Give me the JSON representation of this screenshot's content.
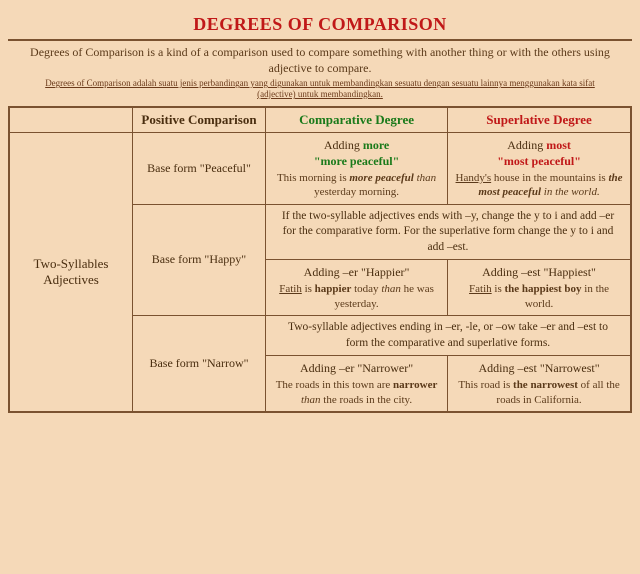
{
  "title": "DEGREES OF COMPARISON",
  "intro": "Degrees of Comparison is a kind of a comparison used to compare something with another thing or with the others using adjective to compare.",
  "subintro": "Degrees of Comparison adalah suatu jenis perbandingan yang digunakan untuk membandingkan sesuatu dengan sesuatu lainnya menggunakan kata sifat (adjective) untuk membandingkan.",
  "headers": {
    "positive": "Positive Comparison",
    "comparative": "Comparative Degree",
    "superlative": "Superlative Degree"
  },
  "rowlabel": "Two-Syllables Adjectives",
  "row1": {
    "base": "Base form \"Peaceful\"",
    "comp_title_a": "Adding ",
    "comp_title_b": "more",
    "comp_title_c": "\"more peaceful\"",
    "comp_ex_a": "This morning is ",
    "comp_ex_b": "more peaceful",
    "comp_ex_c": " than",
    "comp_ex_d": " yesterday morning.",
    "sup_title_a": "Adding ",
    "sup_title_b": "most",
    "sup_title_c": "\"most peaceful\"",
    "sup_ex_a": "Handy's",
    "sup_ex_b": " house in the mountains is ",
    "sup_ex_c": "the most peaceful",
    "sup_ex_d": " in the world."
  },
  "rule2": "If the two-syllable adjectives ends with –y, change the y to i and add –er for the comparative form. For the superlative form change the y to i and add –est.",
  "row2": {
    "base": "Base form \"Happy\"",
    "comp_title": "Adding –er \"Happier\"",
    "comp_ex_a": "Fatih",
    "comp_ex_b": " is ",
    "comp_ex_c": "happier",
    "comp_ex_d": " today ",
    "comp_ex_e": "than",
    "comp_ex_f": " he was yesterday.",
    "sup_title": "Adding –est \"Happiest\"",
    "sup_ex_a": "Fatih",
    "sup_ex_b": " is ",
    "sup_ex_c": "the happiest boy",
    "sup_ex_d": " in the world."
  },
  "rule3": "Two-syllable adjectives ending in –er, -le, or –ow take –er and –est to form the comparative and superlative forms.",
  "row3": {
    "base": "Base form \"Narrow\"",
    "comp_title": "Adding –er \"Narrower\"",
    "comp_ex_a": "The roads in this town are ",
    "comp_ex_b": "narrower",
    "comp_ex_c": " than",
    "comp_ex_d": " the roads in the city.",
    "sup_title": "Adding –est \"Narrowest\"",
    "sup_ex_a": "This road is ",
    "sup_ex_b": "the narrowest",
    "sup_ex_c": " of all the roads in California."
  },
  "colors": {
    "bg": "#f5d9b8",
    "border": "#7a5230",
    "title": "#c01818",
    "comp": "#1a7a1a",
    "sup": "#c01818",
    "body": "#4a2e10"
  }
}
